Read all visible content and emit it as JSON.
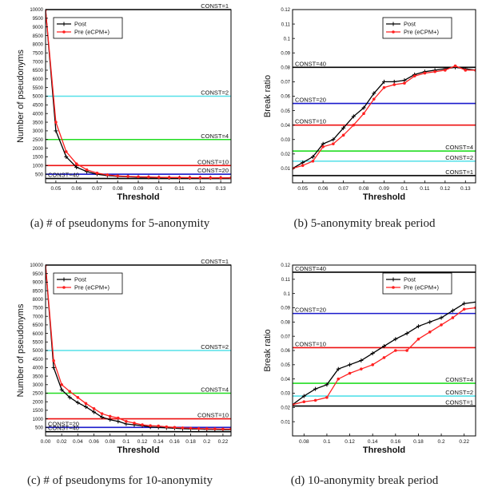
{
  "chart_data": [
    {
      "id": "a",
      "type": "line",
      "caption": "(a) # of pseudonyms for 5-anonymity",
      "xlabel": "Threshold",
      "ylabel": "Number of pseudonyms",
      "xlim": [
        0.045,
        0.135
      ],
      "ylim": [
        0,
        10000
      ],
      "xticks": [
        "0.05",
        "0.06",
        "0.07",
        "0.08",
        "0.09",
        "0.1",
        "0.11",
        "0.12",
        "0.13"
      ],
      "yticks": [
        "500",
        "1000",
        "1500",
        "2000",
        "2500",
        "3000",
        "3500",
        "4000",
        "4500",
        "5000",
        "5500",
        "6000",
        "6500",
        "7000",
        "7500",
        "8000",
        "8500",
        "9000",
        "9500",
        "10000"
      ],
      "ytick_values": [
        500,
        1000,
        1500,
        2000,
        2500,
        3000,
        3500,
        4000,
        4500,
        5000,
        5500,
        6000,
        6500,
        7000,
        7500,
        8000,
        8500,
        9000,
        9500,
        10000
      ],
      "legend": {
        "position": "top-left",
        "entries": [
          "Post",
          "Pre (eCPM+)"
        ]
      },
      "series": [
        {
          "name": "Post",
          "color": "#000000",
          "marker": "plus",
          "x": [
            0.045,
            0.05,
            0.055,
            0.06,
            0.065,
            0.07,
            0.075,
            0.08,
            0.085,
            0.09,
            0.095,
            0.1,
            0.105,
            0.11,
            0.115,
            0.12,
            0.125,
            0.13,
            0.135
          ],
          "y": [
            10000,
            3000,
            1500,
            900,
            650,
            500,
            420,
            380,
            350,
            330,
            320,
            310,
            300,
            300,
            295,
            290,
            290,
            285,
            285
          ]
        },
        {
          "name": "Pre (eCPM+)",
          "color": "#ff2020",
          "marker": "star",
          "x": [
            0.045,
            0.05,
            0.055,
            0.06,
            0.065,
            0.07,
            0.075,
            0.08,
            0.085,
            0.09,
            0.095,
            0.1,
            0.105,
            0.11,
            0.115,
            0.12,
            0.125,
            0.13,
            0.135
          ],
          "y": [
            10000,
            3500,
            1800,
            1100,
            750,
            560,
            460,
            400,
            370,
            350,
            335,
            320,
            310,
            305,
            300,
            295,
            292,
            290,
            288
          ]
        }
      ],
      "hlines": [
        {
          "label": "CONST=1",
          "y": 10000,
          "color": "#000000",
          "label_side": "right"
        },
        {
          "label": "CONST=2",
          "y": 5000,
          "color": "#55e0e8",
          "label_side": "right"
        },
        {
          "label": "CONST=4",
          "y": 2500,
          "color": "#22dd22",
          "label_side": "right"
        },
        {
          "label": "CONST=10",
          "y": 1000,
          "color": "#ee1111",
          "label_side": "right"
        },
        {
          "label": "CONST=20",
          "y": 500,
          "color": "#1a1acc",
          "label_side": "right"
        },
        {
          "label": "CONST=40",
          "y": 250,
          "color": "#000000",
          "label_side": "left"
        }
      ]
    },
    {
      "id": "b",
      "type": "line",
      "caption": "(b) 5-anonymity break period",
      "xlabel": "Threshold",
      "ylabel": "Break ratio",
      "xlim": [
        0.045,
        0.135
      ],
      "ylim": [
        0,
        0.12
      ],
      "xticks": [
        "0.05",
        "0.06",
        "0.07",
        "0.08",
        "0.09",
        "0.1",
        "0.11",
        "0.12",
        "0.13"
      ],
      "yticks": [
        "0.01",
        "0.02",
        "0.03",
        "0.04",
        "0.05",
        "0.06",
        "0.07",
        "0.08",
        "0.09",
        "0.1",
        "0.11",
        "0.12"
      ],
      "ytick_values": [
        0.01,
        0.02,
        0.03,
        0.04,
        0.05,
        0.06,
        0.07,
        0.08,
        0.09,
        0.1,
        0.11,
        0.12
      ],
      "legend": {
        "position": "top-right",
        "entries": [
          "Post",
          "Pre (eCPM+)"
        ]
      },
      "series": [
        {
          "name": "Post",
          "color": "#000000",
          "marker": "plus",
          "x": [
            0.045,
            0.05,
            0.055,
            0.06,
            0.065,
            0.07,
            0.075,
            0.08,
            0.085,
            0.09,
            0.095,
            0.1,
            0.105,
            0.11,
            0.115,
            0.12,
            0.125,
            0.13,
            0.135
          ],
          "y": [
            0.01,
            0.014,
            0.018,
            0.027,
            0.03,
            0.038,
            0.046,
            0.052,
            0.062,
            0.07,
            0.07,
            0.071,
            0.075,
            0.077,
            0.078,
            0.079,
            0.08,
            0.079,
            0.078
          ]
        },
        {
          "name": "Pre (eCPM+)",
          "color": "#ff2020",
          "marker": "star",
          "x": [
            0.045,
            0.05,
            0.055,
            0.06,
            0.065,
            0.07,
            0.075,
            0.08,
            0.085,
            0.09,
            0.095,
            0.1,
            0.105,
            0.11,
            0.115,
            0.12,
            0.125,
            0.13,
            0.135
          ],
          "y": [
            0.01,
            0.012,
            0.015,
            0.025,
            0.027,
            0.033,
            0.04,
            0.048,
            0.058,
            0.066,
            0.068,
            0.069,
            0.074,
            0.076,
            0.077,
            0.078,
            0.081,
            0.078,
            0.078
          ]
        }
      ],
      "hlines": [
        {
          "label": "CONST=40",
          "y": 0.08,
          "color": "#000000",
          "label_side": "left"
        },
        {
          "label": "CONST=20",
          "y": 0.055,
          "color": "#1a1acc",
          "label_side": "left"
        },
        {
          "label": "CONST=10",
          "y": 0.04,
          "color": "#ee1111",
          "label_side": "left"
        },
        {
          "label": "CONST=4",
          "y": 0.022,
          "color": "#22dd22",
          "label_side": "right"
        },
        {
          "label": "CONST=2",
          "y": 0.015,
          "color": "#55e0e8",
          "label_side": "right"
        },
        {
          "label": "CONST=1",
          "y": 0.005,
          "color": "#000000",
          "label_side": "right"
        }
      ]
    },
    {
      "id": "c",
      "type": "line",
      "caption": "(c) # of pseudonyms for 10-anonymity",
      "xlabel": "Threshold",
      "ylabel": "Number of pseudonyms",
      "xlim": [
        0.0,
        0.23
      ],
      "ylim": [
        0,
        10000
      ],
      "xticks": [
        "0.00",
        "0.02",
        "0.04",
        "0.06",
        "0.08",
        "0.1",
        "0.12",
        "0.14",
        "0.16",
        "0.18",
        "0.2",
        "0.22"
      ],
      "yticks": [
        "500",
        "1000",
        "1500",
        "2000",
        "2500",
        "3000",
        "3500",
        "4000",
        "4500",
        "5000",
        "5500",
        "6000",
        "6500",
        "7000",
        "7500",
        "8000",
        "8500",
        "9000",
        "9500",
        "10000"
      ],
      "ytick_values": [
        500,
        1000,
        1500,
        2000,
        2500,
        3000,
        3500,
        4000,
        4500,
        5000,
        5500,
        6000,
        6500,
        7000,
        7500,
        8000,
        8500,
        9000,
        9500,
        10000
      ],
      "legend": {
        "position": "top-left",
        "entries": [
          "Post",
          "Pre (eCPM+)"
        ]
      },
      "series": [
        {
          "name": "Post",
          "color": "#000000",
          "marker": "plus",
          "x": [
            0.0,
            0.01,
            0.02,
            0.03,
            0.04,
            0.05,
            0.06,
            0.07,
            0.08,
            0.09,
            0.1,
            0.11,
            0.12,
            0.13,
            0.14,
            0.15,
            0.16,
            0.17,
            0.18,
            0.19,
            0.2,
            0.21,
            0.22,
            0.23
          ],
          "y": [
            10000,
            4000,
            2700,
            2250,
            1950,
            1700,
            1400,
            1100,
            950,
            850,
            700,
            650,
            600,
            520,
            500,
            470,
            450,
            420,
            410,
            400,
            390,
            380,
            370,
            370
          ]
        },
        {
          "name": "Pre (eCPM+)",
          "color": "#ff2020",
          "marker": "star",
          "x": [
            0.0,
            0.01,
            0.02,
            0.03,
            0.04,
            0.05,
            0.06,
            0.07,
            0.08,
            0.09,
            0.1,
            0.11,
            0.12,
            0.13,
            0.14,
            0.15,
            0.16,
            0.17,
            0.18,
            0.19,
            0.2,
            0.21,
            0.22,
            0.23
          ],
          "y": [
            10000,
            4400,
            3000,
            2600,
            2250,
            1900,
            1600,
            1300,
            1150,
            1050,
            850,
            750,
            650,
            600,
            580,
            530,
            500,
            470,
            450,
            430,
            420,
            410,
            400,
            400
          ]
        }
      ],
      "hlines": [
        {
          "label": "CONST=1",
          "y": 10000,
          "color": "#000000",
          "label_side": "right"
        },
        {
          "label": "CONST=2",
          "y": 5000,
          "color": "#55e0e8",
          "label_side": "right"
        },
        {
          "label": "CONST=4",
          "y": 2500,
          "color": "#22dd22",
          "label_side": "right"
        },
        {
          "label": "CONST=10",
          "y": 1000,
          "color": "#ee1111",
          "label_side": "right"
        },
        {
          "label": "CONST=20",
          "y": 500,
          "color": "#1a1acc",
          "label_side": "left"
        },
        {
          "label": "CONST=40",
          "y": 250,
          "color": "#000000",
          "label_side": "left"
        }
      ]
    },
    {
      "id": "d",
      "type": "line",
      "caption": "(d) 10-anonymity break period",
      "xlabel": "Threshold",
      "ylabel": "Break ratio",
      "xlim": [
        0.07,
        0.23
      ],
      "ylim": [
        0,
        0.12
      ],
      "xticks": [
        "0.08",
        "0.1",
        "0.12",
        "0.14",
        "0.16",
        "0.18",
        "0.2",
        "0.22"
      ],
      "yticks": [
        "0.01",
        "0.02",
        "0.03",
        "0.04",
        "0.05",
        "0.06",
        "0.07",
        "0.08",
        "0.09",
        "0.1",
        "0.11",
        "0.12"
      ],
      "ytick_values": [
        0.01,
        0.02,
        0.03,
        0.04,
        0.05,
        0.06,
        0.07,
        0.08,
        0.09,
        0.1,
        0.11,
        0.12
      ],
      "legend": {
        "position": "top-right",
        "entries": [
          "Post",
          "Pre (eCPM+)"
        ]
      },
      "series": [
        {
          "name": "Post",
          "color": "#000000",
          "marker": "plus",
          "x": [
            0.07,
            0.08,
            0.09,
            0.1,
            0.11,
            0.12,
            0.13,
            0.14,
            0.15,
            0.16,
            0.17,
            0.18,
            0.19,
            0.2,
            0.21,
            0.22,
            0.23
          ],
          "y": [
            0.022,
            0.028,
            0.033,
            0.036,
            0.047,
            0.05,
            0.053,
            0.058,
            0.063,
            0.068,
            0.072,
            0.077,
            0.08,
            0.083,
            0.088,
            0.093,
            0.094
          ]
        },
        {
          "name": "Pre (eCPM+)",
          "color": "#ff2020",
          "marker": "star",
          "x": [
            0.07,
            0.08,
            0.09,
            0.1,
            0.11,
            0.12,
            0.13,
            0.14,
            0.15,
            0.16,
            0.17,
            0.18,
            0.19,
            0.2,
            0.21,
            0.22,
            0.23
          ],
          "y": [
            0.022,
            0.024,
            0.025,
            0.027,
            0.04,
            0.044,
            0.047,
            0.05,
            0.055,
            0.06,
            0.06,
            0.068,
            0.073,
            0.078,
            0.083,
            0.089,
            0.09
          ]
        }
      ],
      "hlines": [
        {
          "label": "CONST=40",
          "y": 0.115,
          "color": "#000000",
          "label_side": "left"
        },
        {
          "label": "CONST=20",
          "y": 0.086,
          "color": "#1a1acc",
          "label_side": "left"
        },
        {
          "label": "CONST=10",
          "y": 0.062,
          "color": "#ee1111",
          "label_side": "left"
        },
        {
          "label": "CONST=4",
          "y": 0.037,
          "color": "#22dd22",
          "label_side": "right"
        },
        {
          "label": "CONST=2",
          "y": 0.028,
          "color": "#55e0e8",
          "label_side": "right"
        },
        {
          "label": "CONST=1",
          "y": 0.021,
          "color": "#000000",
          "label_side": "right"
        }
      ]
    }
  ]
}
